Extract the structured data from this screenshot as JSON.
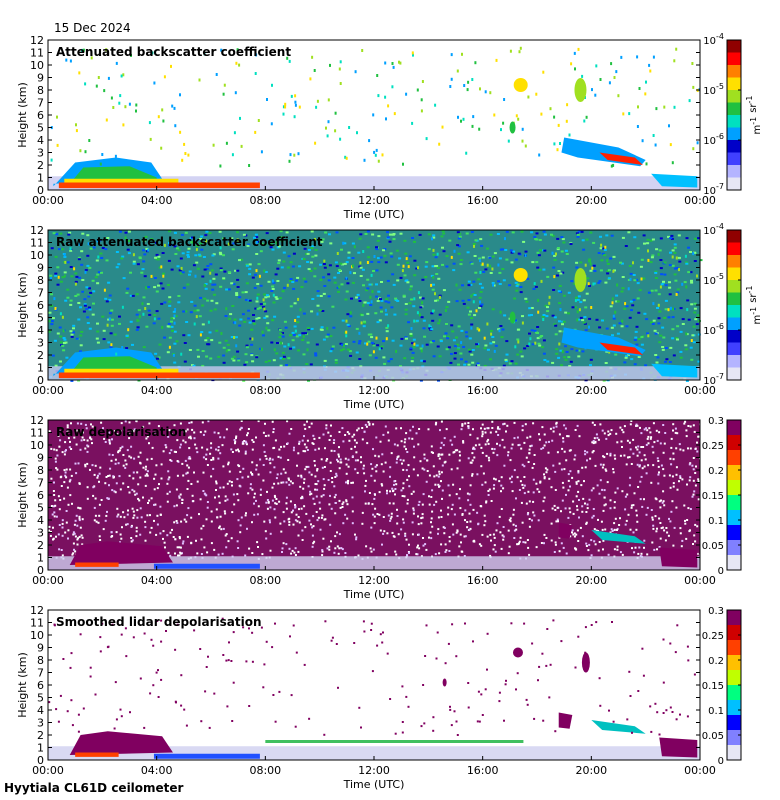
{
  "header": {
    "date": "15 Dec 2024"
  },
  "footer": {
    "site": "Hyytiala CL61D ceilometer"
  },
  "chart_data": [
    {
      "type": "heatmap",
      "title": "Attenuated backscatter coefficient",
      "xlabel": "Time (UTC)",
      "ylabel": "Height (km)",
      "xticks": [
        "00:00",
        "04:00",
        "08:00",
        "12:00",
        "16:00",
        "20:00",
        "00:00"
      ],
      "xlim": [
        0,
        24
      ],
      "ylim": [
        0,
        12
      ],
      "yticks": [
        0,
        1,
        2,
        3,
        4,
        5,
        6,
        7,
        8,
        9,
        10,
        11,
        12
      ],
      "colorbar": {
        "scale": "log",
        "labels": [
          "10^-7",
          "10^-6",
          "10^-5",
          "10^-4"
        ],
        "unit": "m^-1 sr^-1"
      }
    },
    {
      "type": "heatmap",
      "title": "Raw attenuated backscatter coefficient",
      "xlabel": "Time (UTC)",
      "ylabel": "Height (km)",
      "xticks": [
        "00:00",
        "04:00",
        "08:00",
        "12:00",
        "16:00",
        "20:00",
        "00:00"
      ],
      "xlim": [
        0,
        24
      ],
      "ylim": [
        0,
        12
      ],
      "yticks": [
        0,
        1,
        2,
        3,
        4,
        5,
        6,
        7,
        8,
        9,
        10,
        11,
        12
      ],
      "colorbar": {
        "scale": "log",
        "labels": [
          "10^-7",
          "10^-6",
          "10^-5",
          "10^-4"
        ],
        "unit": "m^-1 sr^-1"
      }
    },
    {
      "type": "heatmap",
      "title": "Raw depolarisation",
      "xlabel": "Time (UTC)",
      "ylabel": "Height (km)",
      "xticks": [
        "00:00",
        "04:00",
        "08:00",
        "12:00",
        "16:00",
        "20:00",
        "00:00"
      ],
      "xlim": [
        0,
        24
      ],
      "ylim": [
        0,
        12
      ],
      "yticks": [
        0,
        1,
        2,
        3,
        4,
        5,
        6,
        7,
        8,
        9,
        10,
        11,
        12
      ],
      "colorbar": {
        "scale": "linear",
        "labels": [
          "0",
          "0.05",
          "0.1",
          "0.15",
          "0.2",
          "0.25",
          "0.3"
        ],
        "unit": ""
      }
    },
    {
      "type": "heatmap",
      "title": "Smoothed lidar depolarisation",
      "xlabel": "Time (UTC)",
      "ylabel": "Height (km)",
      "xticks": [
        "00:00",
        "04:00",
        "08:00",
        "12:00",
        "16:00",
        "20:00",
        "00:00"
      ],
      "xlim": [
        0,
        24
      ],
      "ylim": [
        0,
        12
      ],
      "yticks": [
        0,
        1,
        2,
        3,
        4,
        5,
        6,
        7,
        8,
        9,
        10,
        11,
        12
      ],
      "colorbar": {
        "scale": "linear",
        "labels": [
          "0",
          "0.05",
          "0.1",
          "0.15",
          "0.2",
          "0.25",
          "0.3"
        ],
        "unit": ""
      }
    }
  ]
}
